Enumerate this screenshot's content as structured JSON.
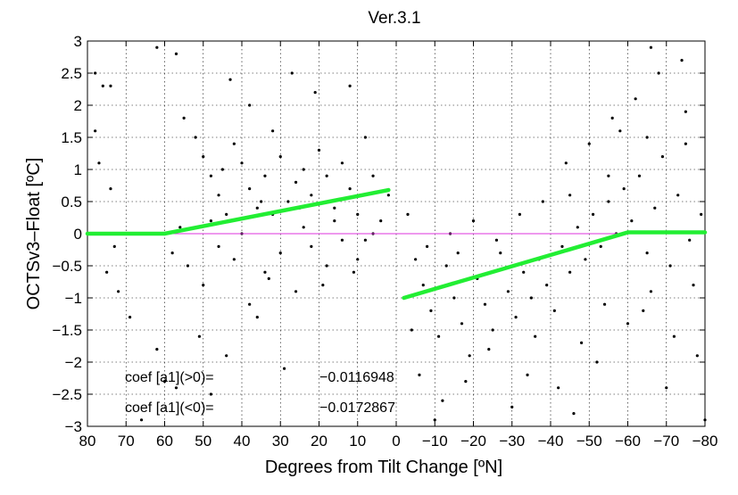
{
  "chart_data": {
    "type": "scatter",
    "title": "Ver.3.1",
    "xlabel": "Degrees from Tilt Change [ºN]",
    "ylabel": "OCTSv3–Float [ºC]",
    "xlim": [
      80,
      -80
    ],
    "ylim": [
      -3,
      3
    ],
    "x_ticks": [
      80,
      70,
      60,
      50,
      40,
      30,
      20,
      10,
      0,
      -10,
      -20,
      -30,
      -40,
      -50,
      -60,
      -70,
      -80
    ],
    "x_tick_labels": [
      "80",
      "70",
      "60",
      "50",
      "40",
      "30",
      "20",
      "10",
      "0",
      "−10",
      "−20",
      "−30",
      "−40",
      "−50",
      "−60",
      "−70",
      "−80"
    ],
    "y_ticks": [
      3,
      2.5,
      2,
      1.5,
      1,
      0.5,
      0,
      -0.5,
      -1,
      -1.5,
      -2,
      -2.5,
      -3
    ],
    "y_tick_labels": [
      "3",
      "2.5",
      "2",
      "1.5",
      "1",
      "0.5",
      "0",
      "−0.5",
      "−1",
      "−1.5",
      "−2",
      "−2.5",
      "−3"
    ],
    "grid": true,
    "legend": "none",
    "series": [
      {
        "kind": "scatter",
        "color": "#000000",
        "points": [
          [
            78,
            2.5
          ],
          [
            76,
            2.3
          ],
          [
            74,
            2.3
          ],
          [
            78,
            1.6
          ],
          [
            77,
            1.1
          ],
          [
            74,
            0.7
          ],
          [
            73,
            -0.2
          ],
          [
            75,
            -0.6
          ],
          [
            72,
            -0.9
          ],
          [
            69,
            -1.3
          ],
          [
            62,
            2.9
          ],
          [
            57,
            2.8
          ],
          [
            55,
            1.8
          ],
          [
            52,
            1.5
          ],
          [
            50,
            1.2
          ],
          [
            48,
            0.9
          ],
          [
            46,
            0.6
          ],
          [
            44,
            0.3
          ],
          [
            42,
            1.4
          ],
          [
            40,
            1.1
          ],
          [
            38,
            0.7
          ],
          [
            36,
            0.4
          ],
          [
            34,
            0.9
          ],
          [
            32,
            1.6
          ],
          [
            30,
            1.2
          ],
          [
            28,
            0.5
          ],
          [
            26,
            0.8
          ],
          [
            24,
            1.0
          ],
          [
            22,
            0.6
          ],
          [
            20,
            1.3
          ],
          [
            18,
            0.9
          ],
          [
            16,
            0.4
          ],
          [
            14,
            1.1
          ],
          [
            12,
            0.7
          ],
          [
            10,
            0.3
          ],
          [
            8,
            1.5
          ],
          [
            6,
            0.9
          ],
          [
            4,
            0.2
          ],
          [
            2,
            0.6
          ],
          [
            58,
            -0.3
          ],
          [
            54,
            -0.5
          ],
          [
            50,
            -0.8
          ],
          [
            46,
            -0.2
          ],
          [
            42,
            -0.4
          ],
          [
            38,
            -1.1
          ],
          [
            34,
            -0.6
          ],
          [
            30,
            -0.3
          ],
          [
            26,
            -0.9
          ],
          [
            22,
            -0.2
          ],
          [
            18,
            -0.5
          ],
          [
            14,
            -0.1
          ],
          [
            10,
            -0.4
          ],
          [
            6,
            0.0
          ],
          [
            56,
            0.1
          ],
          [
            48,
            0.2
          ],
          [
            40,
            0.0
          ],
          [
            32,
            0.3
          ],
          [
            24,
            0.1
          ],
          [
            16,
            0.2
          ],
          [
            8,
            -0.1
          ],
          [
            43,
            2.4
          ],
          [
            38,
            2.0
          ],
          [
            27,
            2.5
          ],
          [
            21,
            2.2
          ],
          [
            12,
            2.3
          ],
          [
            51,
            -1.6
          ],
          [
            44,
            -1.9
          ],
          [
            36,
            -1.3
          ],
          [
            29,
            -2.1
          ],
          [
            62,
            -1.8
          ],
          [
            57,
            -2.4
          ],
          [
            48,
            -2.5
          ],
          [
            66,
            -2.9
          ],
          [
            60,
            -2.3
          ],
          [
            33,
            -0.7
          ],
          [
            19,
            -0.8
          ],
          [
            11,
            -0.6
          ],
          [
            45,
            1.0
          ],
          [
            35,
            0.5
          ],
          [
            25,
            0.4
          ],
          [
            -3,
            0.3
          ],
          [
            -5,
            -0.4
          ],
          [
            -7,
            -0.8
          ],
          [
            -9,
            -1.2
          ],
          [
            -11,
            -1.6
          ],
          [
            -13,
            -0.5
          ],
          [
            -15,
            -1.0
          ],
          [
            -17,
            -1.4
          ],
          [
            -19,
            -1.9
          ],
          [
            -21,
            -0.7
          ],
          [
            -23,
            -1.1
          ],
          [
            -25,
            -1.5
          ],
          [
            -27,
            -0.3
          ],
          [
            -29,
            -0.9
          ],
          [
            -31,
            -1.3
          ],
          [
            -33,
            -0.6
          ],
          [
            -35,
            -1.0
          ],
          [
            -37,
            -0.4
          ],
          [
            -39,
            -0.8
          ],
          [
            -41,
            -1.2
          ],
          [
            -43,
            -0.2
          ],
          [
            -45,
            -0.6
          ],
          [
            -47,
            0.1
          ],
          [
            -49,
            -0.4
          ],
          [
            -51,
            0.3
          ],
          [
            -53,
            -0.2
          ],
          [
            -55,
            0.5
          ],
          [
            -57,
            0.0
          ],
          [
            -59,
            0.7
          ],
          [
            -61,
            0.2
          ],
          [
            -63,
            0.9
          ],
          [
            -65,
            -0.3
          ],
          [
            -67,
            0.4
          ],
          [
            -69,
            1.2
          ],
          [
            -71,
            -0.5
          ],
          [
            -73,
            0.6
          ],
          [
            -75,
            1.4
          ],
          [
            -77,
            -0.8
          ],
          [
            -79,
            0.3
          ],
          [
            -6,
            -2.2
          ],
          [
            -12,
            -2.6
          ],
          [
            -18,
            -2.3
          ],
          [
            -24,
            -1.8
          ],
          [
            -30,
            -2.7
          ],
          [
            -36,
            -1.6
          ],
          [
            -42,
            -2.4
          ],
          [
            -48,
            -1.7
          ],
          [
            -54,
            -1.1
          ],
          [
            -60,
            -1.4
          ],
          [
            -66,
            -0.9
          ],
          [
            -72,
            -1.6
          ],
          [
            -78,
            -1.9
          ],
          [
            -44,
            1.1
          ],
          [
            -50,
            1.4
          ],
          [
            -56,
            1.8
          ],
          [
            -62,
            2.1
          ],
          [
            -68,
            2.5
          ],
          [
            -74,
            2.7
          ],
          [
            -66,
            2.9
          ],
          [
            -58,
            1.6
          ],
          [
            -38,
            0.5
          ],
          [
            -32,
            0.3
          ],
          [
            -26,
            -0.1
          ],
          [
            -20,
            0.2
          ],
          [
            -14,
            0.0
          ],
          [
            -8,
            -0.2
          ],
          [
            -4,
            -1.5
          ],
          [
            -10,
            -2.9
          ],
          [
            -16,
            -0.3
          ],
          [
            -34,
            -2.2
          ],
          [
            -46,
            -2.8
          ],
          [
            -52,
            -2.0
          ],
          [
            -64,
            -1.2
          ],
          [
            -70,
            -2.4
          ],
          [
            -76,
            -0.1
          ],
          [
            -80,
            -2.9
          ],
          [
            -45,
            0.6
          ],
          [
            -55,
            0.9
          ],
          [
            -65,
            1.5
          ],
          [
            -75,
            1.9
          ]
        ]
      },
      {
        "kind": "fit-line",
        "color": "#22ee33",
        "points": [
          [
            80,
            0.0
          ],
          [
            60,
            0.0
          ],
          [
            2,
            0.68
          ]
        ]
      },
      {
        "kind": "fit-line",
        "color": "#22ee33",
        "points": [
          [
            -2,
            -1.0
          ],
          [
            -60,
            0.02
          ],
          [
            -80,
            0.02
          ]
        ]
      },
      {
        "kind": "zero-line",
        "color": "#dd33dd",
        "points": [
          [
            80,
            0
          ],
          [
            -80,
            0
          ]
        ]
      }
    ],
    "annotations": [
      {
        "label": "coef [a1](>0)=",
        "value": "−0.0116948"
      },
      {
        "label": "coef [a1](<0)=",
        "value": "−0.0172867"
      }
    ]
  }
}
